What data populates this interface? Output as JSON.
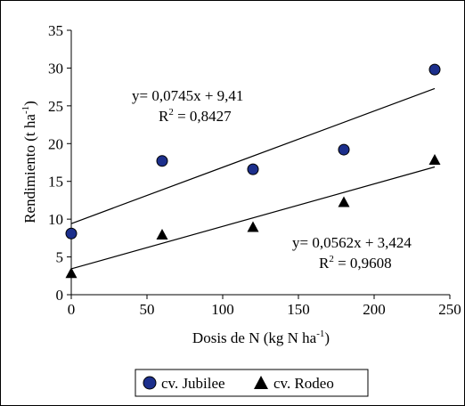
{
  "chart_data": {
    "type": "scatter",
    "title": "",
    "xlabel": "Dosis de N (kg N ha",
    "xlabel_sup": "-1",
    "xlabel_end": ")",
    "ylabel": "Rendimiento (t ha",
    "ylabel_sup": "-1",
    "ylabel_end": ")",
    "xlim": [
      0,
      250
    ],
    "ylim": [
      0,
      35
    ],
    "x_ticks": [
      0,
      50,
      100,
      150,
      200,
      250
    ],
    "y_ticks": [
      0,
      5,
      10,
      15,
      20,
      25,
      30,
      35
    ],
    "x_tick_labels": [
      "0",
      "50",
      "100",
      "150",
      "200",
      "250"
    ],
    "y_tick_labels": [
      "0",
      "5",
      "10",
      "15",
      "20",
      "25",
      "30",
      "35"
    ],
    "grid": false,
    "legend_position": "bottom",
    "series": [
      {
        "name": "cv. Jubilee",
        "marker": "circle",
        "color": "#1c2f8c",
        "x": [
          0,
          60,
          120,
          180,
          240
        ],
        "y": [
          8.1,
          17.7,
          16.6,
          19.2,
          29.8
        ],
        "trendline": {
          "slope": 0.0745,
          "intercept": 9.41,
          "equation": "y= 0,0745x + 9,41",
          "r2_label": "R",
          "r2_sup": "2",
          "r2_value": " = 0,8427"
        }
      },
      {
        "name": "cv. Rodeo",
        "marker": "triangle",
        "color": "#000000",
        "x": [
          0,
          60,
          120,
          180,
          240
        ],
        "y": [
          2.8,
          7.9,
          8.9,
          12.2,
          17.8
        ],
        "trendline": {
          "slope": 0.0562,
          "intercept": 3.424,
          "equation": "y= 0,0562x + 3,424",
          "r2_label": "R",
          "r2_sup": "2",
          "r2_value": " = 0,9608"
        }
      }
    ]
  }
}
